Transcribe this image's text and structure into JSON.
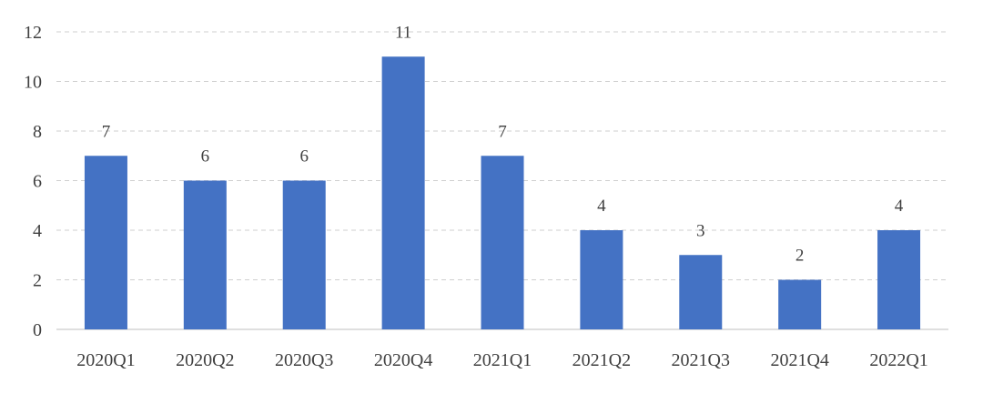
{
  "chart_data": {
    "type": "bar",
    "categories": [
      "2020Q1",
      "2020Q2",
      "2020Q3",
      "2020Q4",
      "2021Q1",
      "2021Q2",
      "2021Q3",
      "2021Q4",
      "2022Q1"
    ],
    "values": [
      7,
      6,
      6,
      11,
      7,
      4,
      3,
      2,
      4
    ],
    "title": "",
    "xlabel": "",
    "ylabel": "",
    "ylim": [
      0,
      12
    ],
    "yticks": [
      0,
      2,
      4,
      6,
      8,
      10,
      12
    ],
    "grid": true,
    "data_labels": true,
    "bar_color": "#4472C4"
  }
}
